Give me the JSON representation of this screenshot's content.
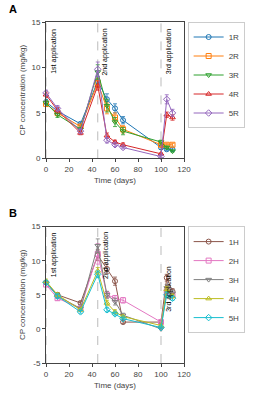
{
  "chart_data": [
    {
      "type": "line",
      "title": "A",
      "x": [
        0,
        10,
        30,
        45,
        53,
        60,
        67,
        100,
        105,
        110
      ],
      "series": [
        {
          "name": "1R",
          "marker": "circle",
          "values": [
            6.2,
            5.2,
            3.8,
            8.5,
            6.5,
            5.5,
            4.2,
            1.2,
            1.0,
            1.0
          ],
          "error": [
            0.3,
            0.3,
            0.2,
            0.5,
            0.6,
            0.5,
            0.4,
            0.2,
            0.15,
            0.15
          ]
        },
        {
          "name": "2R",
          "marker": "square",
          "values": [
            6.0,
            5.0,
            3.5,
            8.3,
            5.5,
            4.5,
            3.2,
            1.5,
            1.5,
            1.5
          ],
          "error": [
            0.3,
            0.3,
            0.2,
            0.5,
            0.6,
            0.5,
            0.4,
            0.2,
            0.15,
            0.15
          ]
        },
        {
          "name": "3R",
          "marker": "triangle-down",
          "values": [
            6.1,
            4.8,
            3.2,
            9.5,
            5.8,
            4.0,
            3.0,
            1.8,
            1.2,
            0.8
          ],
          "error": [
            0.3,
            0.3,
            0.2,
            0.8,
            0.7,
            0.5,
            0.4,
            0.2,
            0.15,
            0.1
          ]
        },
        {
          "name": "4R",
          "marker": "triangle-up",
          "values": [
            7.0,
            5.3,
            2.8,
            8.0,
            2.5,
            1.8,
            1.5,
            0.5,
            4.8,
            4.5
          ],
          "error": [
            0.3,
            0.3,
            0.2,
            0.5,
            0.3,
            0.2,
            0.2,
            0.1,
            0.3,
            0.3
          ]
        },
        {
          "name": "5R",
          "marker": "diamond",
          "values": [
            7.2,
            5.5,
            3.0,
            9.8,
            2.0,
            1.5,
            1.2,
            0.2,
            6.5,
            5.0
          ],
          "error": [
            0.3,
            0.3,
            0.2,
            0.8,
            0.3,
            0.2,
            0.15,
            0.1,
            0.5,
            0.4
          ]
        }
      ],
      "vlines": [
        0,
        45,
        100
      ],
      "annotations": [
        {
          "text": "1st application",
          "x": 1.5,
          "y": 14.5
        },
        {
          "text": "2nd application",
          "x": 46.5,
          "y": 14.5
        },
        {
          "text": "3rd application",
          "x": 101.5,
          "y": 14.5
        }
      ],
      "xlabel": "Time (days)",
      "ylabel": "CP concentration (mg/kg)",
      "xlim": [
        0,
        120
      ],
      "xticks": [
        0,
        20,
        40,
        60,
        80,
        100,
        120
      ],
      "ylim": [
        0,
        15
      ],
      "yticks": [
        0,
        5,
        10,
        15
      ],
      "grid": false,
      "legend": "right"
    },
    {
      "type": "line",
      "title": "B",
      "x": [
        0,
        10,
        30,
        45,
        53,
        60,
        67,
        100,
        105,
        110
      ],
      "series": [
        {
          "name": "1H",
          "marker": "circle",
          "values": [
            6.8,
            5.0,
            3.8,
            10.8,
            8.8,
            7.0,
            1.0,
            1.0,
            7.5,
            5.5
          ],
          "error": [
            0.3,
            0.3,
            0.2,
            0.8,
            0.7,
            0.6,
            0.2,
            0.15,
            0.5,
            0.4
          ]
        },
        {
          "name": "2H",
          "marker": "square",
          "values": [
            6.5,
            4.5,
            3.0,
            11.0,
            5.0,
            4.5,
            4.2,
            1.0,
            5.5,
            5.0
          ],
          "error": [
            0.3,
            0.3,
            0.2,
            1.5,
            0.5,
            0.4,
            0.4,
            0.15,
            0.4,
            0.3
          ]
        },
        {
          "name": "3H",
          "marker": "triangle-down",
          "values": [
            6.8,
            4.8,
            3.0,
            12.2,
            5.0,
            4.0,
            2.0,
            0.0,
            6.0,
            5.2
          ],
          "error": [
            0.3,
            0.3,
            0.2,
            1.0,
            0.5,
            0.5,
            0.3,
            0.1,
            0.5,
            0.4
          ]
        },
        {
          "name": "4H",
          "marker": "triangle-up",
          "values": [
            7.0,
            5.0,
            2.8,
            8.5,
            3.8,
            2.5,
            1.8,
            0.5,
            5.8,
            4.8
          ],
          "error": [
            0.3,
            0.3,
            0.2,
            0.5,
            0.4,
            0.3,
            0.2,
            0.1,
            0.4,
            0.3
          ]
        },
        {
          "name": "5H",
          "marker": "diamond",
          "values": [
            6.8,
            4.8,
            2.5,
            8.0,
            2.8,
            2.2,
            1.5,
            0.2,
            5.0,
            4.5
          ],
          "error": [
            0.3,
            0.3,
            0.2,
            0.5,
            0.3,
            0.2,
            0.15,
            0.1,
            0.4,
            0.3
          ]
        }
      ],
      "vlines": [
        0,
        45,
        100
      ],
      "annotations": [
        {
          "text": "1st application",
          "x": 1.5,
          "y": 14.5
        },
        {
          "text": "2nd application",
          "x": 46.5,
          "y": 14.5
        },
        {
          "text": "3rd application",
          "x": 101.5,
          "y": 9.5
        }
      ],
      "xlabel": "Time (days)",
      "ylabel": "CP concentration (mg/kg)",
      "xlim": [
        0,
        120
      ],
      "xticks": [
        0,
        20,
        40,
        60,
        80,
        100,
        120
      ],
      "ylim": [
        -5,
        15
      ],
      "yticks": [
        -5,
        0,
        5,
        10,
        15
      ],
      "grid": false,
      "legend": "right"
    }
  ]
}
